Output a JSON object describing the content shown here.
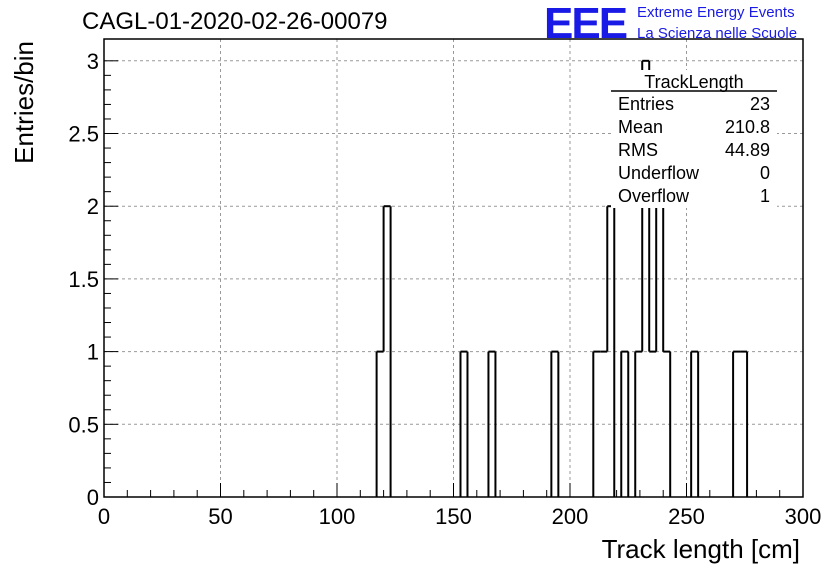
{
  "title": "CAGL-01-2020-02-26-00079",
  "logo": {
    "mark": "EEE",
    "line1": "Extreme Energy Events",
    "line2": "La Scienza nelle Scuole"
  },
  "chart_data": {
    "type": "histogram",
    "xlabel": "Track length [cm]",
    "ylabel": "Entries/bin",
    "xlim": [
      0,
      300
    ],
    "ylim": [
      0,
      3
    ],
    "xticks": [
      0,
      50,
      100,
      150,
      200,
      250,
      300
    ],
    "xtick_labels": [
      "0",
      "50",
      "100",
      "150",
      "200",
      "250",
      "300"
    ],
    "yticks": [
      0,
      0.5,
      1,
      1.5,
      2,
      2.5,
      3
    ],
    "ytick_labels": [
      "0",
      "0.5",
      "1",
      "1.5",
      "2",
      "2.5",
      "3"
    ],
    "grid": true,
    "bin_edges": [
      0,
      3,
      6,
      9,
      12,
      15,
      18,
      21,
      24,
      27,
      30,
      33,
      36,
      39,
      42,
      45,
      48,
      51,
      54,
      57,
      60,
      63,
      66,
      69,
      72,
      75,
      78,
      81,
      84,
      87,
      90,
      93,
      96,
      99,
      102,
      105,
      108,
      111,
      114,
      117,
      120,
      123,
      126,
      129,
      132,
      135,
      138,
      141,
      144,
      147,
      150,
      153,
      156,
      159,
      162,
      165,
      168,
      171,
      174,
      177,
      180,
      183,
      186,
      189,
      192,
      195,
      198,
      201,
      204,
      207,
      210,
      213,
      216,
      219,
      222,
      225,
      228,
      231,
      234,
      237,
      240,
      243,
      246,
      249,
      252,
      255,
      258,
      261,
      264,
      267,
      270,
      273,
      276,
      279,
      282,
      285,
      288,
      291,
      294,
      297,
      300
    ],
    "counts": [
      0,
      0,
      0,
      0,
      0,
      0,
      0,
      0,
      0,
      0,
      0,
      0,
      0,
      0,
      0,
      0,
      0,
      0,
      0,
      0,
      0,
      0,
      0,
      0,
      0,
      0,
      0,
      0,
      0,
      0,
      0,
      0,
      0,
      0,
      0,
      0,
      0,
      0,
      0,
      1,
      2,
      0,
      0,
      0,
      0,
      0,
      0,
      0,
      0,
      0,
      0,
      1,
      0,
      0,
      0,
      1,
      0,
      0,
      0,
      0,
      0,
      0,
      0,
      0,
      1,
      0,
      0,
      0,
      0,
      0,
      1,
      1,
      2,
      0,
      1,
      0,
      1,
      3,
      1,
      2,
      1,
      0,
      0,
      0,
      1,
      0,
      0,
      0,
      0,
      0,
      1,
      1,
      0,
      0,
      0,
      0,
      0,
      0,
      0,
      0
    ],
    "stats_box": {
      "title": "TrackLength",
      "rows": [
        {
          "label": "Entries",
          "value": "23"
        },
        {
          "label": "Mean",
          "value": "210.8"
        },
        {
          "label": "RMS",
          "value": "44.89"
        },
        {
          "label": "Underflow",
          "value": "0"
        },
        {
          "label": "Overflow",
          "value": "1"
        }
      ]
    }
  }
}
